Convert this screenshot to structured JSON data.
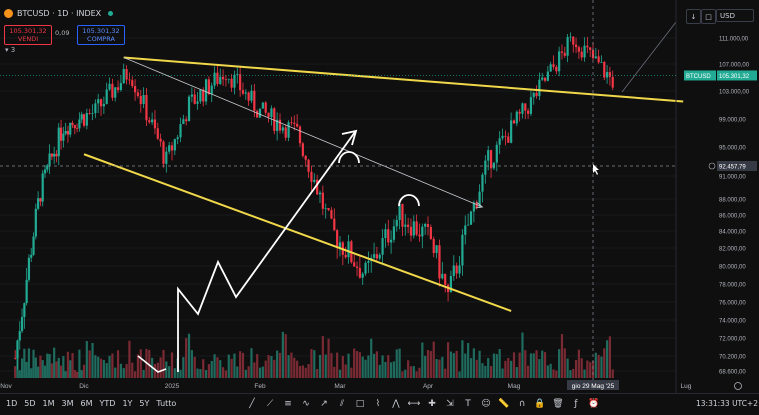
{
  "header": {
    "symbol": "BTCUSD · 1D · INDEX",
    "sell_price": "105.301,32",
    "sell_label": "VENDI",
    "spread": "0,09",
    "buy_price": "105.301,32",
    "buy_label": "COMPRA",
    "indicator_count": "3",
    "currency": "USD"
  },
  "colors": {
    "up": "#22ab94",
    "down": "#f23645",
    "trendline": "#f0d84a",
    "annotation": "#ffffff",
    "background": "#0f0f0f",
    "price_label": "#22ab94"
  },
  "bottom_bar": {
    "timeframes": [
      "1D",
      "5D",
      "1M",
      "3M",
      "6M",
      "YTD",
      "1Y",
      "5Y",
      "Tutto"
    ],
    "tool_icons": [
      "ray-tool-icon",
      "trend-line-icon",
      "fib-icon",
      "brush-icon",
      "arrow-icon",
      "channel-icon",
      "rectangle-icon",
      "path-icon",
      "pattern-icon",
      "measure-icon",
      "cross-icon",
      "projection-icon",
      "text-icon",
      "emoji-icon",
      "ruler-icon",
      "magnet-icon",
      "lock-icon",
      "trash-icon",
      "indicator-icon",
      "alert-icon"
    ],
    "clock": "13:31:33 UTC+2"
  },
  "chart_data": {
    "type": "candlestick",
    "title": "BTCUSD · 1D · INDEX",
    "price_axis": {
      "ticks": [
        68600,
        70200,
        72000,
        74000,
        76000,
        78000,
        80000,
        82000,
        84000,
        86000,
        88000,
        91000,
        95000,
        99000,
        103000,
        107000,
        111000
      ],
      "tick_labels": [
        "68.600,00",
        "70.200,00",
        "72.000,00",
        "74.000,00",
        "76.000,00",
        "78.000,00",
        "80.000,00",
        "82.000,00",
        "84.000,00",
        "86.000,00",
        "88.000,00",
        "91.000,00",
        "95.000,00",
        "99.000,00",
        "103.000,00",
        "107.000,00",
        "111.000,00"
      ]
    },
    "time_axis": {
      "labels": [
        "Nov",
        "Dic",
        "2025",
        "Feb",
        "Mar",
        "Apr",
        "Mag",
        "gio 29 Mag '25",
        "Lug"
      ]
    },
    "last_price": {
      "label": "BTCUSD",
      "value": "105.301,32"
    },
    "crosshair_price": "92.457,79",
    "dates": [
      "2024-11-01",
      "2024-11-12",
      "2024-11-22",
      "2024-12-05",
      "2024-12-17",
      "2024-12-30",
      "2025-01-07",
      "2025-01-20",
      "2025-02-01",
      "2025-02-14",
      "2025-02-26",
      "2025-03-10",
      "2025-03-22",
      "2025-04-02",
      "2025-04-08",
      "2025-04-22",
      "2025-05-08",
      "2025-05-22",
      "2025-06-05"
    ],
    "close": [
      70000,
      89000,
      98000,
      100000,
      106000,
      93000,
      101000,
      106000,
      100000,
      97000,
      84000,
      79000,
      86000,
      83000,
      76500,
      93000,
      102000,
      111000,
      104500
    ],
    "trendlines": [
      {
        "name": "upper-resistance",
        "from": [
          "2024-12-15",
          108000
        ],
        "to": [
          "2025-06-30",
          101500
        ]
      },
      {
        "name": "lower-support",
        "from": [
          "2024-12-01",
          94000
        ],
        "to": [
          "2025-04-30",
          75000
        ]
      },
      {
        "name": "mid-channel",
        "from": [
          "2024-12-15",
          108000
        ],
        "to": [
          "2025-04-20",
          87000
        ]
      }
    ]
  }
}
